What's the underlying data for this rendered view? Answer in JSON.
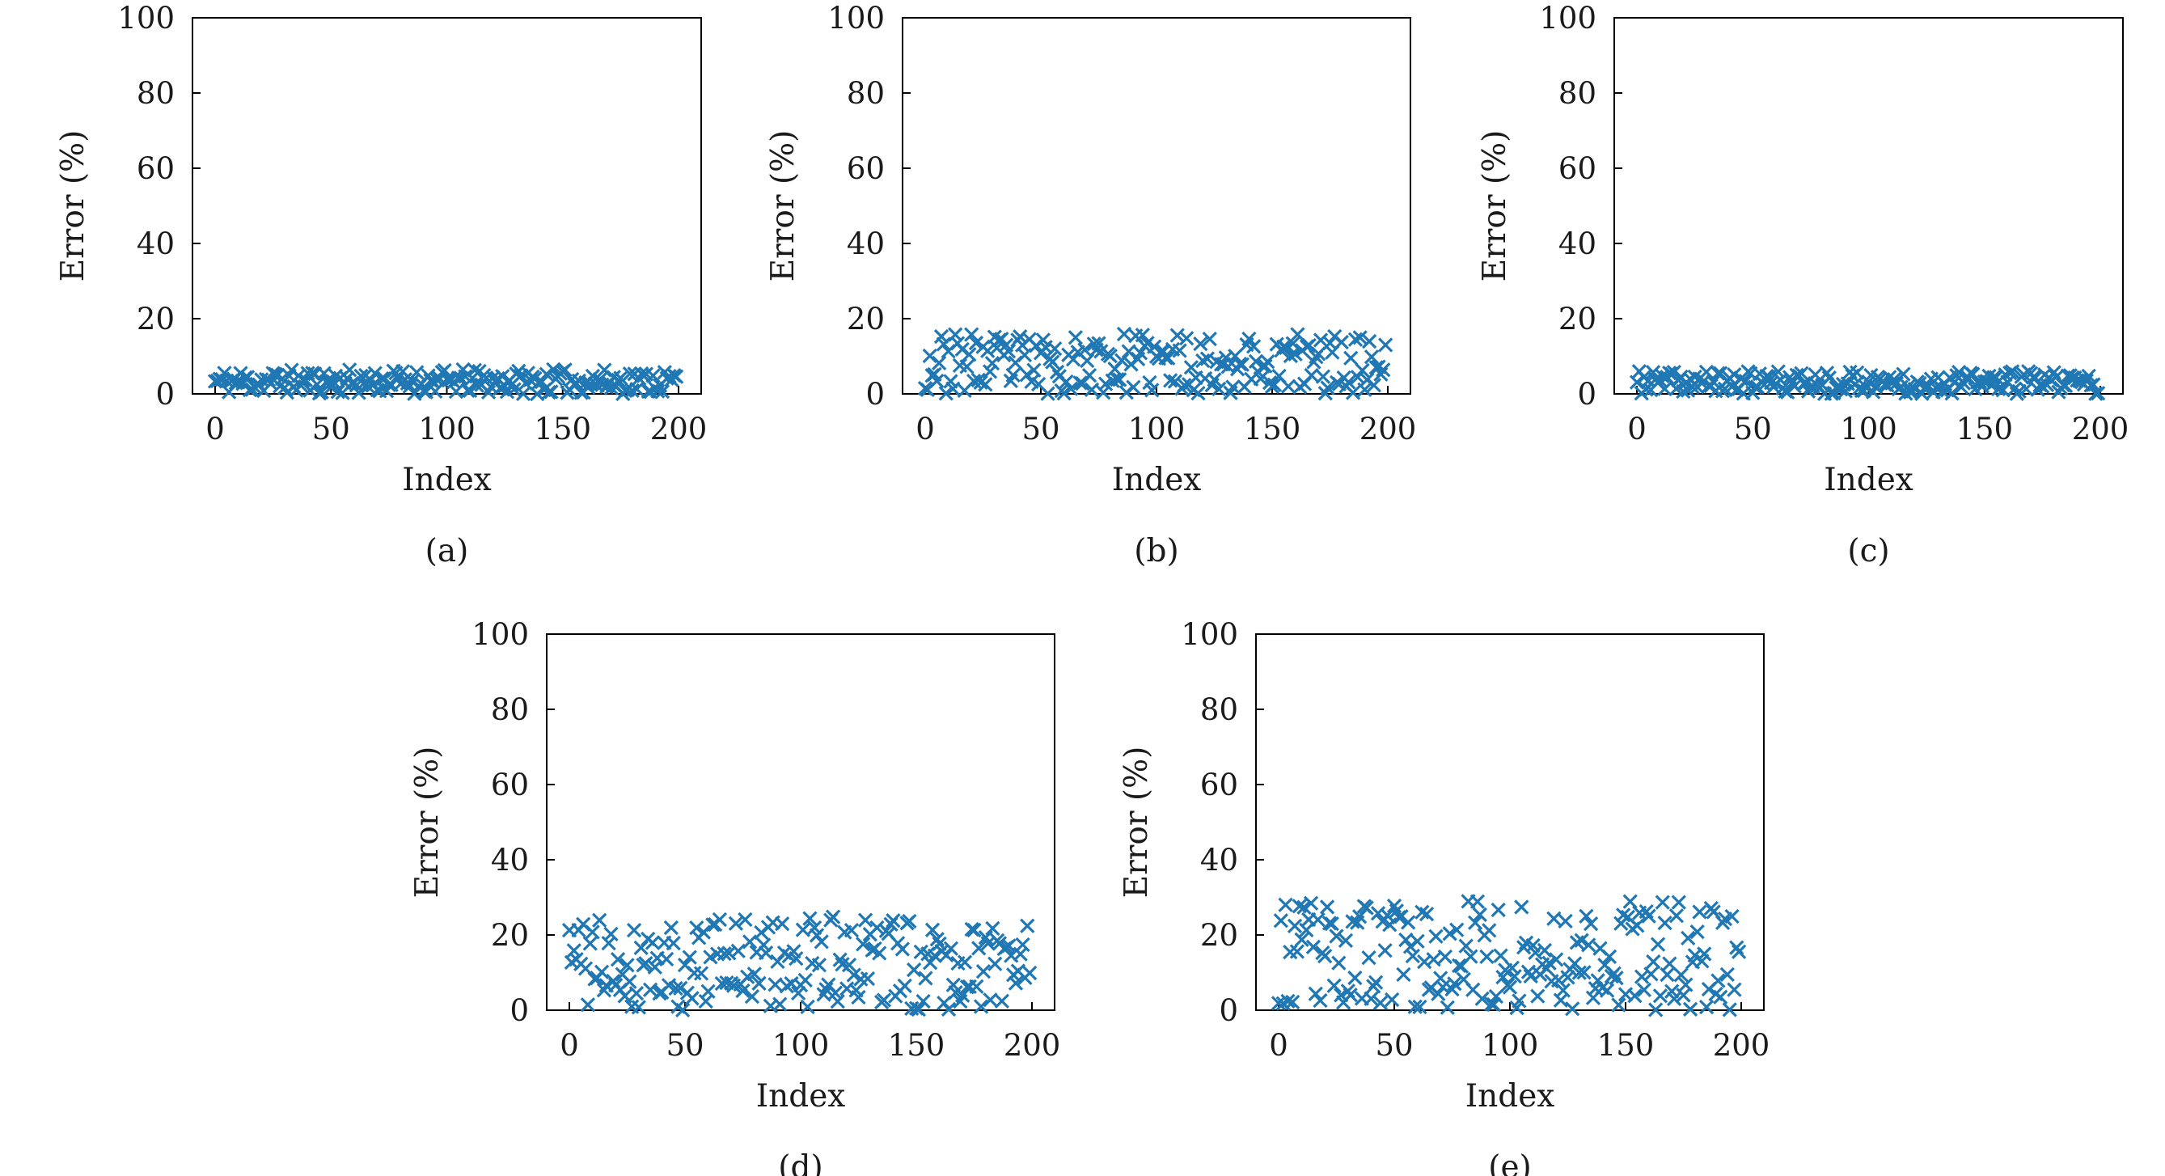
{
  "chart_data": [
    {
      "type": "scatter",
      "caption": "(a)",
      "xlabel": "Index",
      "ylabel": "Error (%)",
      "xlim": [
        0,
        200
      ],
      "ylim": [
        0,
        100
      ],
      "xticks": [
        "0",
        "50",
        "100",
        "150",
        "200"
      ],
      "yticks": [
        "0",
        "20",
        "40",
        "60",
        "80",
        "100"
      ],
      "marker_color": "#1f77b4",
      "n_points": 200,
      "error_range": [
        0,
        6.5
      ],
      "seed": 11
    },
    {
      "type": "scatter",
      "caption": "(b)",
      "xlabel": "Index",
      "ylabel": "Error (%)",
      "xlim": [
        0,
        200
      ],
      "ylim": [
        0,
        100
      ],
      "xticks": [
        "0",
        "50",
        "100",
        "150",
        "200"
      ],
      "yticks": [
        "0",
        "20",
        "40",
        "60",
        "80",
        "100"
      ],
      "marker_color": "#1f77b4",
      "n_points": 200,
      "error_range": [
        0,
        16
      ],
      "seed": 23
    },
    {
      "type": "scatter",
      "caption": "(c)",
      "xlabel": "Index",
      "ylabel": "Error (%)",
      "xlim": [
        0,
        200
      ],
      "ylim": [
        0,
        100
      ],
      "xticks": [
        "0",
        "50",
        "100",
        "150",
        "200"
      ],
      "yticks": [
        "0",
        "20",
        "40",
        "60",
        "80",
        "100"
      ],
      "marker_color": "#1f77b4",
      "n_points": 200,
      "error_range": [
        0,
        6
      ],
      "seed": 37
    },
    {
      "type": "scatter",
      "caption": "(d)",
      "xlabel": "Index",
      "ylabel": "Error (%)",
      "xlim": [
        0,
        200
      ],
      "ylim": [
        0,
        100
      ],
      "xticks": [
        "0",
        "50",
        "100",
        "150",
        "200"
      ],
      "yticks": [
        "0",
        "20",
        "40",
        "60",
        "80",
        "100"
      ],
      "marker_color": "#1f77b4",
      "n_points": 200,
      "error_range": [
        0,
        25
      ],
      "seed": 41
    },
    {
      "type": "scatter",
      "caption": "(e)",
      "xlabel": "Index",
      "ylabel": "Error (%)",
      "xlim": [
        0,
        200
      ],
      "ylim": [
        0,
        100
      ],
      "xticks": [
        "0",
        "50",
        "100",
        "150",
        "200"
      ],
      "yticks": [
        "0",
        "20",
        "40",
        "60",
        "80",
        "100"
      ],
      "marker_color": "#1f77b4",
      "n_points": 200,
      "error_range": [
        0,
        29
      ],
      "seed": 53
    }
  ]
}
